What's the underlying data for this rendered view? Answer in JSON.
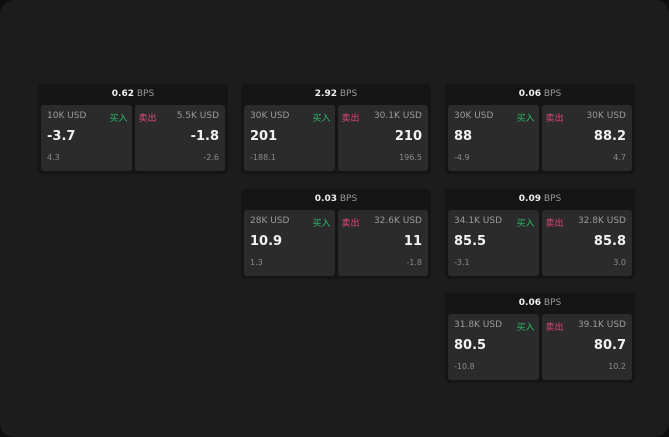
{
  "colors": {
    "buy": "#2fb86a",
    "sell": "#e0457b",
    "background": "#1c1c1c"
  },
  "labels": {
    "buy": "买入",
    "sell": "卖出",
    "unit": "BPS"
  },
  "tiles": [
    {
      "spread": "0.62",
      "buy": {
        "qty": "10K USD",
        "price": "-3.7",
        "change": "4.3"
      },
      "sell": {
        "qty": "5.5K USD",
        "price": "-1.8",
        "change": "-2.6"
      }
    },
    {
      "spread": "2.92",
      "buy": {
        "qty": "30K USD",
        "price": "201",
        "change": "-188.1"
      },
      "sell": {
        "qty": "30.1K USD",
        "price": "210",
        "change": "196.5"
      }
    },
    {
      "spread": "0.06",
      "buy": {
        "qty": "30K USD",
        "price": "88",
        "change": "-4.9"
      },
      "sell": {
        "qty": "30K USD",
        "price": "88.2",
        "change": "4.7"
      }
    },
    {
      "spread": "0.03",
      "buy": {
        "qty": "28K USD",
        "price": "10.9",
        "change": "1.3"
      },
      "sell": {
        "qty": "32.6K USD",
        "price": "11",
        "change": "-1.8"
      }
    },
    {
      "spread": "0.09",
      "buy": {
        "qty": "34.1K USD",
        "price": "85.5",
        "change": "-3.1"
      },
      "sell": {
        "qty": "32.8K USD",
        "price": "85.8",
        "change": "3.0"
      }
    },
    {
      "spread": "0.06",
      "buy": {
        "qty": "31.8K USD",
        "price": "80.5",
        "change": "-10.8"
      },
      "sell": {
        "qty": "39.1K USD",
        "price": "80.7",
        "change": "10.2"
      }
    }
  ]
}
